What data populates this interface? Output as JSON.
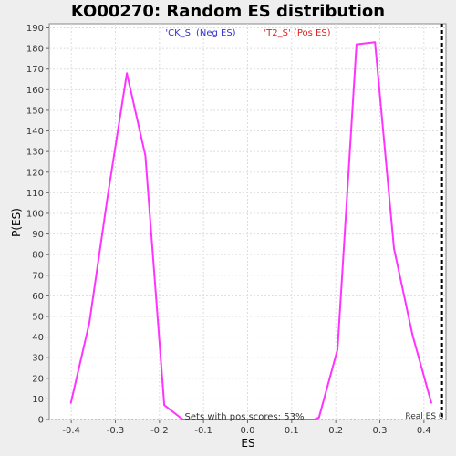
{
  "chart_data": {
    "type": "line",
    "title": "KO00270: Random ES distribution",
    "xlabel": "ES",
    "ylabel": "P(ES)",
    "xlim": [
      -0.45,
      0.45
    ],
    "ylim": [
      0,
      192
    ],
    "xticks": [
      -0.4,
      -0.3,
      -0.2,
      -0.1,
      0.0,
      0.1,
      0.2,
      0.3,
      0.4
    ],
    "xtick_labels": [
      "-0.4",
      "-0.3",
      "-0.2",
      "-0.1",
      "0.0",
      "0.1",
      "0.2",
      "0.3",
      "0.4"
    ],
    "yticks": [
      0,
      10,
      20,
      30,
      40,
      50,
      60,
      70,
      80,
      90,
      100,
      110,
      120,
      130,
      140,
      150,
      160,
      170,
      180,
      190
    ],
    "legend": {
      "neg": "'CK_S' (Neg ES)",
      "pos": "'T2_S' (Pos ES)"
    },
    "series": [
      {
        "color": "#ff33ff",
        "x": [
          -0.401,
          -0.359,
          -0.317,
          -0.274,
          -0.232,
          -0.189,
          -0.147,
          -0.104,
          -0.062,
          -0.019,
          0.023,
          0.066,
          0.108,
          0.151,
          0.162,
          0.204,
          0.247,
          0.289,
          0.332,
          0.374,
          0.417
        ],
        "y": [
          8,
          47,
          109,
          168,
          128,
          7,
          0,
          0,
          0,
          0,
          0,
          0,
          0,
          0,
          1,
          34,
          182,
          183,
          83,
          41,
          8
        ]
      }
    ],
    "real_es": {
      "x": 0.441,
      "label": "Real ES 0"
    },
    "annotation": "Sets with pos scores: 53%",
    "grid": true
  }
}
